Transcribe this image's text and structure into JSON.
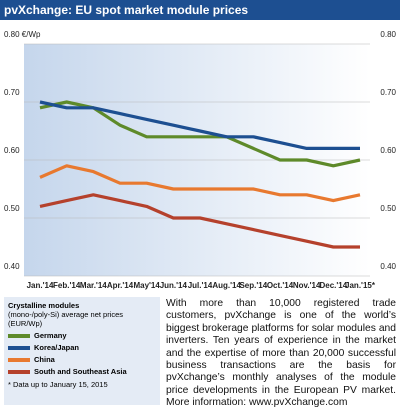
{
  "chart_data": {
    "type": "line",
    "title": "pvXchange: EU spot market module prices",
    "categories": [
      "Jan.'14",
      "Feb.'14",
      "Mar.'14",
      "Apr.'14",
      "May'14",
      "Jun.'14",
      "Jul.'14",
      "Aug.'14",
      "Sep.'14",
      "Oct.'14",
      "Nov.'14",
      "Dec.'14",
      "Jan.'15*"
    ],
    "series": [
      {
        "name": "Germany",
        "color": "#5e8a2a",
        "values": [
          0.69,
          0.7,
          0.69,
          0.66,
          0.64,
          0.64,
          0.64,
          0.64,
          0.62,
          0.6,
          0.6,
          0.59,
          0.6
        ]
      },
      {
        "name": "Korea/Japan",
        "color": "#1d4f91",
        "values": [
          0.7,
          0.69,
          0.69,
          0.68,
          0.67,
          0.66,
          0.65,
          0.64,
          0.64,
          0.63,
          0.62,
          0.62,
          0.62
        ]
      },
      {
        "name": "China",
        "color": "#e8792f",
        "values": [
          0.57,
          0.59,
          0.58,
          0.56,
          0.56,
          0.55,
          0.55,
          0.55,
          0.55,
          0.54,
          0.54,
          0.53,
          0.54
        ]
      },
      {
        "name": "South and Southeast Asia",
        "color": "#b5412c",
        "values": [
          0.52,
          0.53,
          0.54,
          0.53,
          0.52,
          0.5,
          0.5,
          0.49,
          0.48,
          0.47,
          0.46,
          0.45,
          0.45
        ]
      }
    ],
    "ylim": [
      0.4,
      0.8
    ],
    "yticks": [
      {
        "value": 0.8,
        "label": "0.80 €/Wp"
      },
      {
        "value": 0.7,
        "label": "0.70"
      },
      {
        "value": 0.6,
        "label": "0.60"
      },
      {
        "value": 0.5,
        "label": "0.50"
      },
      {
        "value": 0.4,
        "label": "0.40"
      }
    ],
    "y2lim": [
      0.4,
      0.8
    ],
    "y2ticks": [
      {
        "value": 0.8,
        "label": "0.80"
      },
      {
        "value": 0.7,
        "label": "0.70"
      },
      {
        "value": 0.6,
        "label": "0.60"
      },
      {
        "value": 0.5,
        "label": "0.50"
      },
      {
        "value": 0.4,
        "label": "0.40"
      }
    ],
    "grid": true,
    "legend_title": "Crystalline modules",
    "legend_subtitle": "(mono-/poly-Si) average net prices (EUR/Wp)",
    "note": "* Data up to January 15, 2015"
  },
  "description": "With more than 10,000 registered trade customers, pvXchange is one of the world’s biggest brokerage platforms for solar modules and inverters. Ten years of experience in the market and the expertise of more than 20,000 successful business transactions are the basis for pvXchange’s monthly analyses of the module price developments in the European PV market. More information: www.pvXchange.com"
}
